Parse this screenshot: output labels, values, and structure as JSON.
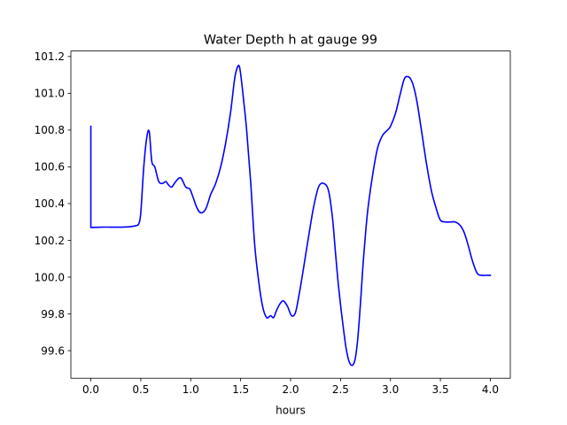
{
  "chart_data": {
    "type": "line",
    "title": "Water Depth h at gauge 99",
    "xlabel": "hours",
    "ylabel": "",
    "xlim": [
      -0.2,
      4.2
    ],
    "ylim": [
      99.45,
      101.23
    ],
    "xticks": [
      0.0,
      0.5,
      1.0,
      1.5,
      2.0,
      2.5,
      3.0,
      3.5,
      4.0
    ],
    "xtick_labels": [
      "0.0",
      "0.5",
      "1.0",
      "1.5",
      "2.0",
      "2.5",
      "3.0",
      "3.5",
      "4.0"
    ],
    "yticks": [
      99.6,
      99.8,
      100.0,
      100.2,
      100.4,
      100.6,
      100.8,
      101.0,
      101.2
    ],
    "ytick_labels": [
      "99.6",
      "99.8",
      "100.0",
      "100.2",
      "100.4",
      "100.6",
      "100.8",
      "101.0",
      "101.2"
    ],
    "grid": false,
    "legend": "none",
    "series": [
      {
        "color": "#0000ff",
        "x": [
          0.0,
          0.0,
          0.001,
          0.1,
          0.2,
          0.3,
          0.4,
          0.45,
          0.48,
          0.5,
          0.53,
          0.56,
          0.585,
          0.61,
          0.64,
          0.68,
          0.72,
          0.75,
          0.78,
          0.81,
          0.85,
          0.9,
          0.95,
          0.99,
          1.02,
          1.06,
          1.1,
          1.15,
          1.2,
          1.25,
          1.3,
          1.35,
          1.4,
          1.44,
          1.47,
          1.49,
          1.51,
          1.53,
          1.56,
          1.6,
          1.64,
          1.68,
          1.72,
          1.76,
          1.8,
          1.83,
          1.86,
          1.9,
          1.93,
          1.97,
          2.01,
          2.05,
          2.09,
          2.13,
          2.18,
          2.23,
          2.28,
          2.33,
          2.38,
          2.42,
          2.45,
          2.48,
          2.52,
          2.56,
          2.6,
          2.64,
          2.67,
          2.7,
          2.73,
          2.77,
          2.82,
          2.87,
          2.92,
          2.97,
          3.0,
          3.05,
          3.1,
          3.14,
          3.18,
          3.21,
          3.24,
          3.27,
          3.31,
          3.36,
          3.41,
          3.46,
          3.5,
          3.55,
          3.6,
          3.65,
          3.7,
          3.74,
          3.78,
          3.82,
          3.87,
          3.92,
          3.96,
          4.0
        ],
        "y": [
          100.82,
          100.27,
          100.27,
          100.272,
          100.272,
          100.272,
          100.275,
          100.28,
          100.29,
          100.35,
          100.6,
          100.76,
          100.79,
          100.63,
          100.6,
          100.52,
          100.51,
          100.52,
          100.5,
          100.49,
          100.52,
          100.54,
          100.49,
          100.48,
          100.44,
          100.38,
          100.35,
          100.37,
          100.45,
          100.51,
          100.6,
          100.73,
          100.9,
          101.08,
          101.145,
          101.14,
          101.06,
          100.96,
          100.8,
          100.52,
          100.18,
          99.98,
          99.84,
          99.78,
          99.79,
          99.78,
          99.82,
          99.86,
          99.87,
          99.84,
          99.79,
          99.81,
          99.92,
          100.05,
          100.22,
          100.38,
          100.49,
          100.51,
          100.47,
          100.32,
          100.13,
          99.95,
          99.76,
          99.6,
          99.525,
          99.54,
          99.65,
          99.86,
          100.1,
          100.35,
          100.55,
          100.7,
          100.77,
          100.8,
          100.82,
          100.89,
          101.0,
          101.08,
          101.09,
          101.07,
          101.02,
          100.94,
          100.8,
          100.62,
          100.47,
          100.37,
          100.31,
          100.3,
          100.3,
          100.3,
          100.28,
          100.24,
          100.17,
          100.09,
          100.02,
          100.01,
          100.01,
          100.01
        ]
      }
    ]
  }
}
